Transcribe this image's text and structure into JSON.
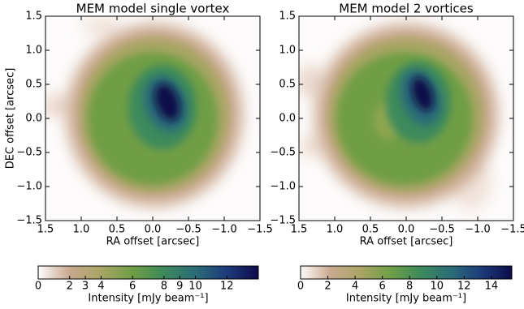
{
  "chart_data": [
    {
      "type": "image",
      "title": "MEM model single vortex",
      "xlabel": "RA offset [arcsec]",
      "ylabel": "DEC offset [arcsec]",
      "xlim": [
        1.5,
        -1.5
      ],
      "ylim": [
        -1.5,
        1.5
      ],
      "xticks": [
        1.5,
        {
          "value": 1,
          "label": "1.0"
        },
        0.5,
        {
          "value": 0,
          "label": "0.0"
        },
        {
          "value": -0.5,
          "label": "−0.5"
        },
        {
          "value": -1,
          "label": "−1.0"
        },
        {
          "value": -1.5,
          "label": "−1.5"
        }
      ],
      "yticks": [
        {
          "value": -1.5,
          "label": "−1.5"
        },
        {
          "value": -1,
          "label": "−1.0"
        },
        {
          "value": -0.5,
          "label": "−0.5"
        },
        {
          "value": 0,
          "label": "0.0"
        },
        0.5,
        {
          "value": 1,
          "label": "1.0"
        },
        1.5
      ],
      "colorbar": {
        "label": "Intensity [mJy beam⁻¹]",
        "lim": [
          0,
          14
        ],
        "ticks": [
          0,
          2,
          3,
          4,
          6,
          8,
          9,
          10,
          12
        ],
        "colors": [
          "#fdfbfb",
          "#c9a88e",
          "#a9a565",
          "#6f9e45",
          "#3c8a5c",
          "#2b6c78",
          "#1e3a7a",
          "#0b0b4a"
        ]
      }
    },
    {
      "type": "image",
      "title": "MEM model 2 vortices",
      "xlabel": "RA offset [arcsec]",
      "xlim": [
        1.5,
        -1.5
      ],
      "ylim": [
        -1.5,
        1.5
      ],
      "xticks": [
        1.5,
        {
          "value": 1,
          "label": "1.0"
        },
        0.5,
        {
          "value": 0,
          "label": "0.0"
        },
        {
          "value": -0.5,
          "label": "−0.5"
        },
        {
          "value": -1,
          "label": "−1.0"
        },
        {
          "value": -1.5,
          "label": "−1.5"
        }
      ],
      "yticks": [
        {
          "value": -1.5,
          "label": "−1.5"
        },
        {
          "value": -1,
          "label": "−1.0"
        },
        {
          "value": -0.5,
          "label": "−0.5"
        },
        {
          "value": 0,
          "label": "0.0"
        },
        0.5,
        {
          "value": 1,
          "label": "1.0"
        },
        1.5
      ],
      "colorbar": {
        "label": "Intensity [mJy beam⁻¹]",
        "lim": [
          0,
          15.5
        ],
        "ticks": [
          0,
          2,
          4,
          6,
          8,
          10,
          12,
          14
        ],
        "colors": [
          "#fdfbfb",
          "#c9a88e",
          "#a9a565",
          "#6f9e45",
          "#3c8a5c",
          "#2b6c78",
          "#1e3a7a",
          "#0b0b4a"
        ]
      }
    }
  ]
}
